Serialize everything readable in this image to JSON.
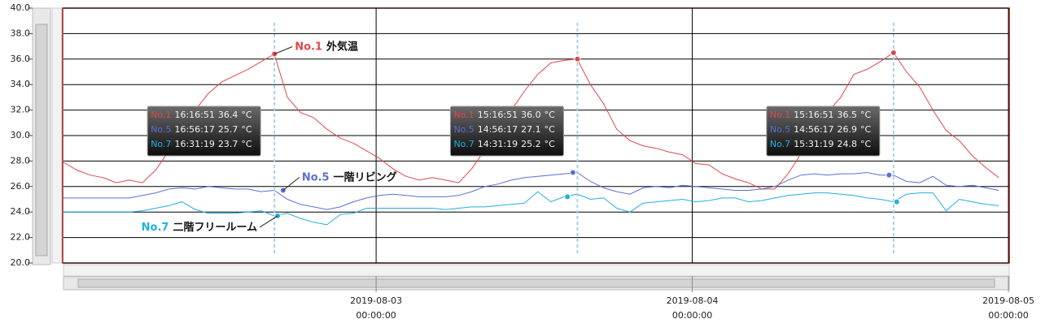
{
  "chart_data": {
    "type": "line",
    "unit": "°C",
    "x": [
      "2019-08-02 00:16",
      "2019-08-02 01:16",
      "2019-08-02 02:16",
      "2019-08-02 03:16",
      "2019-08-02 04:16",
      "2019-08-02 05:16",
      "2019-08-02 06:16",
      "2019-08-02 07:16",
      "2019-08-02 08:16",
      "2019-08-02 09:16",
      "2019-08-02 10:16",
      "2019-08-02 11:16",
      "2019-08-02 12:16",
      "2019-08-02 13:16",
      "2019-08-02 14:16",
      "2019-08-02 15:16",
      "2019-08-02 16:16",
      "2019-08-02 17:16",
      "2019-08-02 18:16",
      "2019-08-02 19:16",
      "2019-08-02 20:16",
      "2019-08-02 21:16",
      "2019-08-02 22:16",
      "2019-08-02 23:16",
      "2019-08-03 00:16",
      "2019-08-03 01:16",
      "2019-08-03 02:16",
      "2019-08-03 03:16",
      "2019-08-03 04:16",
      "2019-08-03 05:16",
      "2019-08-03 06:16",
      "2019-08-03 07:16",
      "2019-08-03 08:16",
      "2019-08-03 09:16",
      "2019-08-03 10:16",
      "2019-08-03 11:16",
      "2019-08-03 12:16",
      "2019-08-03 13:16",
      "2019-08-03 14:16",
      "2019-08-03 15:16",
      "2019-08-03 16:16",
      "2019-08-03 17:16",
      "2019-08-03 18:16",
      "2019-08-03 19:16",
      "2019-08-03 20:16",
      "2019-08-03 21:16",
      "2019-08-03 22:16",
      "2019-08-03 23:16",
      "2019-08-04 00:16",
      "2019-08-04 01:16",
      "2019-08-04 02:16",
      "2019-08-04 03:16",
      "2019-08-04 04:16",
      "2019-08-04 05:16",
      "2019-08-04 06:16",
      "2019-08-04 07:16",
      "2019-08-04 08:16",
      "2019-08-04 09:16",
      "2019-08-04 10:16",
      "2019-08-04 11:16",
      "2019-08-04 12:16",
      "2019-08-04 13:16",
      "2019-08-04 14:16",
      "2019-08-04 15:16",
      "2019-08-04 16:16",
      "2019-08-04 17:16",
      "2019-08-04 18:16",
      "2019-08-04 19:16",
      "2019-08-04 20:16",
      "2019-08-04 21:16",
      "2019-08-04 22:16",
      "2019-08-04 23:16"
    ],
    "series": [
      {
        "name": "No.1",
        "label": "外気温",
        "color": "#e0474c",
        "values": [
          27.9,
          27.3,
          26.9,
          26.7,
          26.3,
          26.5,
          26.3,
          27.3,
          28.8,
          30.5,
          32.0,
          33.3,
          34.2,
          34.7,
          35.2,
          35.8,
          36.4,
          33.0,
          31.8,
          31.4,
          30.5,
          29.8,
          29.4,
          28.8,
          28.2,
          27.4,
          26.8,
          26.5,
          26.7,
          26.5,
          26.3,
          27.4,
          28.9,
          30.4,
          32.0,
          33.5,
          34.8,
          35.7,
          35.9,
          36.0,
          34.0,
          32.5,
          30.5,
          29.6,
          29.2,
          29.0,
          28.7,
          28.5,
          27.8,
          27.7,
          27.0,
          26.6,
          26.3,
          25.8,
          25.8,
          27.0,
          28.6,
          30.0,
          31.8,
          33.0,
          34.8,
          35.2,
          35.8,
          36.5,
          35.0,
          33.8,
          32.0,
          30.4,
          29.6,
          28.4,
          27.5,
          26.7
        ]
      },
      {
        "name": "No.5",
        "label": "一階リビング",
        "color": "#5b6fd6",
        "values": [
          25.1,
          25.1,
          25.1,
          25.1,
          25.1,
          25.1,
          25.3,
          25.5,
          25.8,
          25.9,
          25.8,
          26.0,
          25.9,
          25.8,
          25.8,
          25.6,
          25.7,
          25.0,
          24.6,
          24.4,
          24.2,
          24.4,
          24.8,
          25.1,
          25.3,
          25.4,
          25.3,
          25.2,
          25.2,
          25.2,
          25.3,
          25.6,
          26.0,
          26.2,
          26.5,
          26.7,
          26.8,
          26.9,
          27.0,
          27.1,
          26.4,
          25.9,
          25.6,
          25.4,
          25.9,
          26.0,
          25.9,
          26.1,
          26.0,
          25.9,
          25.8,
          25.7,
          25.7,
          25.8,
          26.0,
          26.5,
          26.9,
          27.0,
          26.9,
          27.0,
          27.0,
          27.1,
          26.9,
          26.9,
          26.4,
          26.3,
          26.8,
          26.1,
          26.0,
          26.1,
          25.9,
          25.7
        ]
      },
      {
        "name": "No.7",
        "label": "二階フリールーム",
        "color": "#1fb0e0",
        "values": [
          24.0,
          24.0,
          24.0,
          24.0,
          24.0,
          24.0,
          24.1,
          24.3,
          24.5,
          24.8,
          24.2,
          23.9,
          23.9,
          23.9,
          24.0,
          24.1,
          23.7,
          23.9,
          23.5,
          23.2,
          23.0,
          23.8,
          23.9,
          24.3,
          24.3,
          24.3,
          24.3,
          24.3,
          24.3,
          24.2,
          24.3,
          24.4,
          24.4,
          24.5,
          24.6,
          24.7,
          25.6,
          24.8,
          25.2,
          25.4,
          25.0,
          25.1,
          24.3,
          24.0,
          24.7,
          24.8,
          24.9,
          25.0,
          24.8,
          24.9,
          25.1,
          25.1,
          24.8,
          24.9,
          25.1,
          25.3,
          25.4,
          25.5,
          25.5,
          25.4,
          25.3,
          25.1,
          25.0,
          24.8,
          25.4,
          25.5,
          25.5,
          24.1,
          25.0,
          24.8,
          24.6,
          24.5
        ]
      }
    ],
    "tooltips": [
      {
        "rows": [
          {
            "x": "2019-08-02 16:16:51",
            "value": 36.4,
            "value_label": "36.4"
          },
          {
            "x": "2019-08-02 16:56:17",
            "value": 25.7,
            "value_label": "25.7"
          },
          {
            "x": "2019-08-02 16:31:19",
            "value": 23.7,
            "value_label": "23.7"
          }
        ]
      },
      {
        "rows": [
          {
            "x": "2019-08-03 15:16:51",
            "value": 36.0,
            "value_label": "36.0"
          },
          {
            "x": "2019-08-03 14:56:17",
            "value": 27.1,
            "value_label": "27.1"
          },
          {
            "x": "2019-08-03 14:31:19",
            "value": 25.2,
            "value_label": "25.2"
          }
        ]
      },
      {
        "rows": [
          {
            "x": "2019-08-04 15:16:51",
            "value": 36.5,
            "value_label": "36.5"
          },
          {
            "x": "2019-08-04 14:56:17",
            "value": 26.9,
            "value_label": "26.9"
          },
          {
            "x": "2019-08-04 15:31:19",
            "value": 24.8,
            "value_label": "24.8"
          }
        ]
      }
    ],
    "xlim": [
      "2019-08-02 00:16",
      "2019-08-05 00:00"
    ],
    "xticks": [
      {
        "value": "2019-08-03 00:00",
        "label": "2019-08-03\n00:00:00"
      },
      {
        "value": "2019-08-04 00:00",
        "label": "2019-08-04\n00:00:00"
      },
      {
        "value": "2019-08-05 00:00",
        "label": "2019-08-05\n00:00:00"
      }
    ],
    "ylim": [
      20,
      40
    ],
    "yticks": [
      {
        "value": 20,
        "label": "20.0"
      },
      {
        "value": 22,
        "label": "22.0"
      },
      {
        "value": 24,
        "label": "24.0"
      },
      {
        "value": 26,
        "label": "26.0"
      },
      {
        "value": 28,
        "label": "28.0"
      },
      {
        "value": 30,
        "label": "30.0"
      },
      {
        "value": 32,
        "label": "32.0"
      },
      {
        "value": 34,
        "label": "34.0"
      },
      {
        "value": 36,
        "label": "36.0"
      },
      {
        "value": 38,
        "label": "38.0"
      },
      {
        "value": 40,
        "label": "40.0"
      }
    ],
    "grid": true
  }
}
